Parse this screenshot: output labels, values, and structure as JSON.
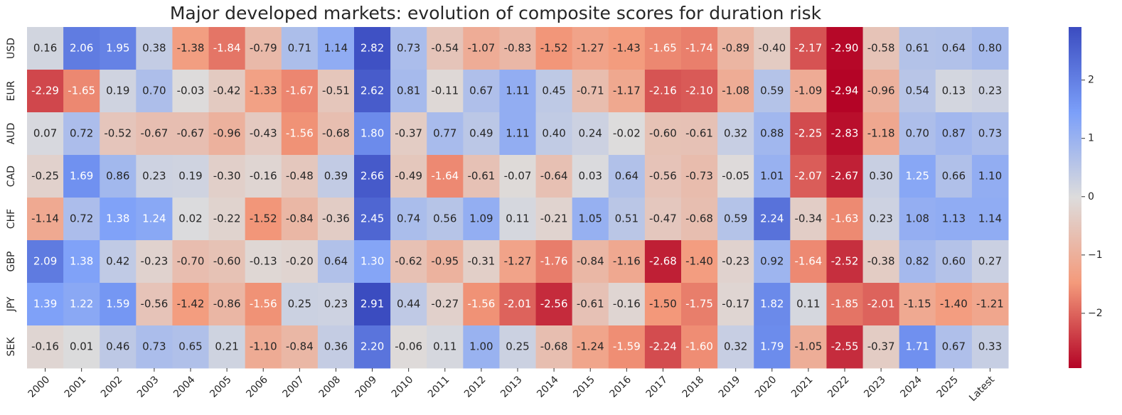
{
  "chart_data": {
    "type": "heatmap",
    "title": "Major developed markets: evolution of composite scores for duration risk",
    "categories": [
      "2000",
      "2001",
      "2002",
      "2003",
      "2004",
      "2005",
      "2006",
      "2007",
      "2008",
      "2009",
      "2010",
      "2011",
      "2012",
      "2013",
      "2014",
      "2015",
      "2016",
      "2017",
      "2018",
      "2019",
      "2020",
      "2021",
      "2022",
      "2023",
      "2024",
      "2025",
      "Latest"
    ],
    "series": [
      {
        "name": "USD",
        "values": [
          0.16,
          2.06,
          1.95,
          0.38,
          -1.38,
          -1.84,
          -0.79,
          0.71,
          1.14,
          2.82,
          0.73,
          -0.54,
          -1.07,
          -0.83,
          -1.52,
          -1.27,
          -1.43,
          -1.65,
          -1.74,
          -0.89,
          -0.4,
          -2.17,
          -2.9,
          -0.58,
          0.61,
          0.64,
          0.8
        ],
        "value_labels": [
          "0.16",
          "2.06",
          "1.95",
          "0.38",
          "-1.38",
          "-1.84",
          "-0.79",
          "0.71",
          "1.14",
          "2.82",
          "0.73",
          "-0.54",
          "-1.07",
          "-0.83",
          "-1.52",
          "-1.27",
          "-1.43",
          "-1.65",
          "-1.74",
          "-0.89",
          "-0.40",
          "-2.17",
          "-2.90",
          "-0.58",
          "0.61",
          "0.64",
          "0.80"
        ]
      },
      {
        "name": "EUR",
        "values": [
          -2.29,
          -1.65,
          0.19,
          0.7,
          -0.03,
          -0.42,
          -1.33,
          -1.67,
          -0.51,
          2.62,
          0.81,
          -0.11,
          0.67,
          1.11,
          0.45,
          -0.71,
          -1.17,
          -2.16,
          -2.1,
          -1.08,
          0.59,
          -1.09,
          -2.94,
          -0.96,
          0.54,
          0.13,
          0.23
        ],
        "value_labels": [
          "-2.29",
          "-1.65",
          "0.19",
          "0.70",
          "-0.03",
          "-0.42",
          "-1.33",
          "-1.67",
          "-0.51",
          "2.62",
          "0.81",
          "-0.11",
          "0.67",
          "1.11",
          "0.45",
          "-0.71",
          "-1.17",
          "-2.16",
          "-2.10",
          "-1.08",
          "0.59",
          "-1.09",
          "-2.94",
          "-0.96",
          "0.54",
          "0.13",
          "0.23"
        ]
      },
      {
        "name": "AUD",
        "values": [
          0.07,
          0.72,
          -0.52,
          -0.67,
          -0.67,
          -0.96,
          -0.43,
          -1.56,
          -0.68,
          1.8,
          -0.37,
          0.77,
          0.49,
          1.11,
          0.4,
          0.24,
          -0.02,
          -0.6,
          -0.61,
          0.32,
          0.88,
          -2.25,
          -2.83,
          -1.18,
          0.7,
          0.87,
          0.73
        ],
        "value_labels": [
          "0.07",
          "0.72",
          "-0.52",
          "-0.67",
          "-0.67",
          "-0.96",
          "-0.43",
          "-1.56",
          "-0.68",
          "1.80",
          "-0.37",
          "0.77",
          "0.49",
          "1.11",
          "0.40",
          "0.24",
          "-0.02",
          "-0.60",
          "-0.61",
          "0.32",
          "0.88",
          "-2.25",
          "-2.83",
          "-1.18",
          "0.70",
          "0.87",
          "0.73"
        ]
      },
      {
        "name": "CAD",
        "values": [
          -0.25,
          1.69,
          0.86,
          0.23,
          0.19,
          -0.3,
          -0.16,
          -0.48,
          0.39,
          2.66,
          -0.49,
          -1.64,
          -0.61,
          -0.07,
          -0.64,
          0.03,
          0.64,
          -0.56,
          -0.73,
          -0.05,
          1.01,
          -2.07,
          -2.67,
          0.3,
          1.25,
          0.66,
          1.1
        ],
        "value_labels": [
          "-0.25",
          "1.69",
          "0.86",
          "0.23",
          "0.19",
          "-0.30",
          "-0.16",
          "-0.48",
          "0.39",
          "2.66",
          "-0.49",
          "-1.64",
          "-0.61",
          "-0.07",
          "-0.64",
          "0.03",
          "0.64",
          "-0.56",
          "-0.73",
          "-0.05",
          "1.01",
          "-2.07",
          "-2.67",
          "0.30",
          "1.25",
          "0.66",
          "1.10"
        ]
      },
      {
        "name": "CHF",
        "values": [
          -1.14,
          0.72,
          1.38,
          1.24,
          0.02,
          -0.22,
          -1.52,
          -0.84,
          -0.36,
          2.45,
          0.74,
          0.56,
          1.09,
          0.11,
          -0.21,
          1.05,
          0.51,
          -0.47,
          -0.68,
          0.59,
          2.24,
          -0.34,
          -1.63,
          0.23,
          1.08,
          1.13,
          1.14
        ],
        "value_labels": [
          "-1.14",
          "0.72",
          "1.38",
          "1.24",
          "0.02",
          "-0.22",
          "-1.52",
          "-0.84",
          "-0.36",
          "2.45",
          "0.74",
          "0.56",
          "1.09",
          "0.11",
          "-0.21",
          "1.05",
          "0.51",
          "-0.47",
          "-0.68",
          "0.59",
          "2.24",
          "-0.34",
          "-1.63",
          "0.23",
          "1.08",
          "1.13",
          "1.14"
        ]
      },
      {
        "name": "GBP",
        "values": [
          2.09,
          1.38,
          0.42,
          -0.23,
          -0.7,
          -0.6,
          -0.13,
          -0.2,
          0.64,
          1.3,
          -0.62,
          -0.95,
          -0.31,
          -1.27,
          -1.76,
          -0.84,
          -1.16,
          -2.68,
          -1.4,
          -0.23,
          0.92,
          -1.64,
          -2.52,
          -0.38,
          0.82,
          0.6,
          0.27
        ],
        "value_labels": [
          "2.09",
          "1.38",
          "0.42",
          "-0.23",
          "-0.70",
          "-0.60",
          "-0.13",
          "-0.20",
          "0.64",
          "1.30",
          "-0.62",
          "-0.95",
          "-0.31",
          "-1.27",
          "-1.76",
          "-0.84",
          "-1.16",
          "-2.68",
          "-1.40",
          "-0.23",
          "0.92",
          "-1.64",
          "-2.52",
          "-0.38",
          "0.82",
          "0.60",
          "0.27"
        ]
      },
      {
        "name": "JPY",
        "values": [
          1.39,
          1.22,
          1.59,
          -0.56,
          -1.42,
          -0.86,
          -1.56,
          0.25,
          0.23,
          2.91,
          0.44,
          -0.27,
          -1.56,
          -2.01,
          -2.56,
          -0.61,
          -0.16,
          -1.5,
          -1.75,
          -0.17,
          1.82,
          0.11,
          -1.85,
          -2.01,
          -1.15,
          -1.4,
          -1.21
        ],
        "value_labels": [
          "1.39",
          "1.22",
          "1.59",
          "-0.56",
          "-1.42",
          "-0.86",
          "-1.56",
          "0.25",
          "0.23",
          "2.91",
          "0.44",
          "-0.27",
          "-1.56",
          "-2.01",
          "-2.56",
          "-0.61",
          "-0.16",
          "-1.50",
          "-1.75",
          "-0.17",
          "1.82",
          "0.11",
          "-1.85",
          "-2.01",
          "-1.15",
          "-1.40",
          "-1.21"
        ]
      },
      {
        "name": "SEK",
        "values": [
          -0.16,
          0.01,
          0.46,
          0.73,
          0.65,
          0.21,
          -1.1,
          -0.84,
          0.36,
          2.2,
          -0.06,
          0.11,
          1.0,
          0.25,
          -0.68,
          -1.24,
          -1.59,
          -2.24,
          -1.6,
          0.32,
          1.79,
          -1.05,
          -2.55,
          -0.37,
          1.71,
          0.67,
          0.33
        ],
        "value_labels": [
          "-0.16",
          "0.01",
          "0.46",
          "0.73",
          "0.65",
          "0.21",
          "-1.10",
          "-0.84",
          "0.36",
          "2.20",
          "-0.06",
          "0.11",
          "1.00",
          "0.25",
          "-0.68",
          "-1.24",
          "-1.59",
          "-2.24",
          "-1.60",
          "0.32",
          "1.79",
          "-1.05",
          "-2.55",
          "-0.37",
          "1.71",
          "0.67",
          "0.33"
        ]
      }
    ],
    "zlim": [
      -2.94,
      2.91
    ],
    "colorscale": [
      "#b40426",
      "#f49a7b",
      "#dddcdc",
      "#7b9ff9",
      "#3b4cc0"
    ],
    "colorbar_ticks": [
      {
        "value": -2,
        "label": "−2"
      },
      {
        "value": -1,
        "label": "−1"
      },
      0,
      1,
      2
    ]
  }
}
